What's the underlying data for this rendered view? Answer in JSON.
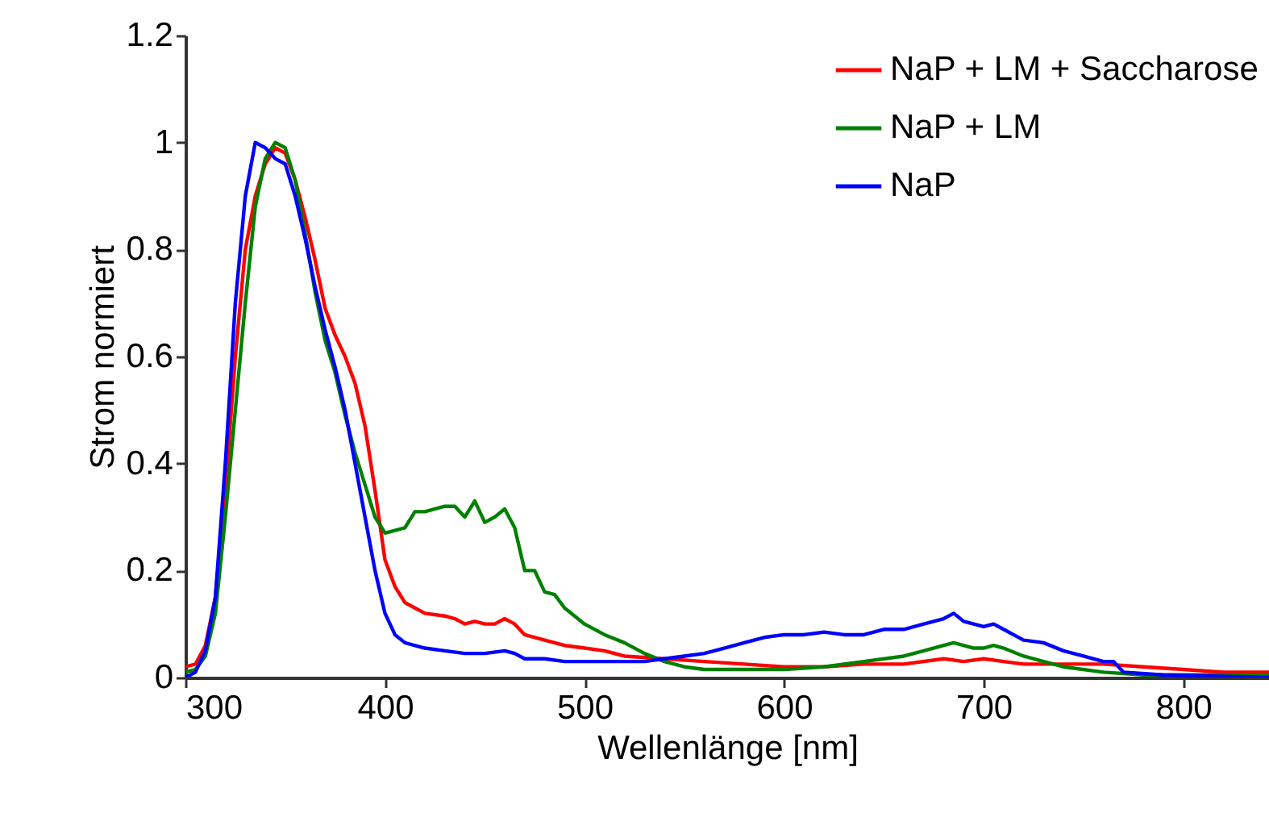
{
  "chart_data": {
    "type": "line",
    "xlabel": "Wellenlänge [nm]",
    "ylabel": "Strom normiert",
    "xlim": [
      300,
      843
    ],
    "xticks": [
      300,
      400,
      500,
      600,
      700,
      800
    ],
    "ylim": [
      0,
      1.2
    ],
    "yticks": [
      0,
      0.2,
      0.4,
      0.6,
      0.8,
      1,
      1.2
    ],
    "grid": false,
    "legend": "top right",
    "marker": "none",
    "line_style": "solid",
    "series": [
      {
        "name": "NaP + LM + Saccharose",
        "color": "#ff0000",
        "x": [
          300,
          305,
          310,
          315,
          320,
          325,
          330,
          335,
          340,
          345,
          350,
          355,
          360,
          365,
          370,
          375,
          380,
          385,
          390,
          395,
          400,
          405,
          410,
          415,
          420,
          430,
          435,
          440,
          445,
          450,
          455,
          460,
          465,
          470,
          480,
          490,
          500,
          510,
          520,
          540,
          560,
          580,
          600,
          620,
          640,
          660,
          680,
          690,
          700,
          710,
          720,
          740,
          760,
          780,
          800,
          820,
          843
        ],
        "values": [
          0.02,
          0.025,
          0.06,
          0.15,
          0.35,
          0.6,
          0.8,
          0.9,
          0.96,
          0.99,
          0.98,
          0.93,
          0.86,
          0.78,
          0.69,
          0.64,
          0.6,
          0.55,
          0.47,
          0.35,
          0.22,
          0.17,
          0.14,
          0.13,
          0.12,
          0.115,
          0.11,
          0.1,
          0.105,
          0.1,
          0.1,
          0.11,
          0.1,
          0.08,
          0.07,
          0.06,
          0.055,
          0.05,
          0.04,
          0.035,
          0.03,
          0.025,
          0.02,
          0.02,
          0.025,
          0.025,
          0.035,
          0.03,
          0.035,
          0.03,
          0.025,
          0.025,
          0.025,
          0.02,
          0.015,
          0.01,
          0.01
        ]
      },
      {
        "name": "NaP + LM",
        "color": "#008000",
        "x": [
          300,
          305,
          310,
          315,
          320,
          325,
          330,
          335,
          340,
          345,
          350,
          355,
          360,
          365,
          370,
          375,
          380,
          385,
          390,
          395,
          400,
          405,
          410,
          415,
          420,
          430,
          435,
          440,
          445,
          450,
          455,
          460,
          465,
          470,
          475,
          480,
          485,
          490,
          500,
          510,
          520,
          530,
          540,
          550,
          560,
          580,
          600,
          620,
          640,
          660,
          670,
          680,
          685,
          695,
          700,
          705,
          710,
          720,
          730,
          740,
          760,
          780,
          843
        ],
        "values": [
          0.01,
          0.015,
          0.04,
          0.12,
          0.3,
          0.5,
          0.7,
          0.88,
          0.97,
          1.0,
          0.99,
          0.93,
          0.83,
          0.72,
          0.63,
          0.57,
          0.49,
          0.42,
          0.36,
          0.3,
          0.27,
          0.275,
          0.28,
          0.31,
          0.31,
          0.32,
          0.32,
          0.3,
          0.33,
          0.29,
          0.3,
          0.315,
          0.28,
          0.2,
          0.2,
          0.16,
          0.155,
          0.13,
          0.1,
          0.08,
          0.065,
          0.045,
          0.03,
          0.02,
          0.015,
          0.015,
          0.015,
          0.02,
          0.03,
          0.04,
          0.05,
          0.06,
          0.065,
          0.055,
          0.055,
          0.06,
          0.055,
          0.04,
          0.03,
          0.02,
          0.01,
          0.005,
          0.005
        ]
      },
      {
        "name": "NaP",
        "color": "#0000ff",
        "x": [
          300,
          305,
          310,
          315,
          320,
          325,
          330,
          335,
          340,
          345,
          350,
          355,
          360,
          365,
          370,
          375,
          380,
          385,
          390,
          395,
          400,
          405,
          410,
          420,
          430,
          440,
          450,
          460,
          465,
          470,
          480,
          490,
          500,
          520,
          530,
          540,
          550,
          560,
          570,
          580,
          590,
          600,
          610,
          620,
          630,
          640,
          650,
          660,
          670,
          680,
          685,
          690,
          700,
          705,
          710,
          720,
          730,
          740,
          750,
          760,
          765,
          770,
          790,
          843
        ],
        "values": [
          0,
          0.01,
          0.05,
          0.15,
          0.4,
          0.7,
          0.9,
          1.0,
          0.99,
          0.97,
          0.96,
          0.9,
          0.82,
          0.73,
          0.65,
          0.58,
          0.5,
          0.4,
          0.3,
          0.2,
          0.12,
          0.08,
          0.065,
          0.055,
          0.05,
          0.045,
          0.045,
          0.05,
          0.045,
          0.035,
          0.035,
          0.03,
          0.03,
          0.03,
          0.03,
          0.035,
          0.04,
          0.045,
          0.055,
          0.065,
          0.075,
          0.08,
          0.08,
          0.085,
          0.08,
          0.08,
          0.09,
          0.09,
          0.1,
          0.11,
          0.12,
          0.105,
          0.095,
          0.1,
          0.09,
          0.07,
          0.065,
          0.05,
          0.04,
          0.03,
          0.03,
          0.01,
          0.005,
          0
        ]
      }
    ]
  }
}
